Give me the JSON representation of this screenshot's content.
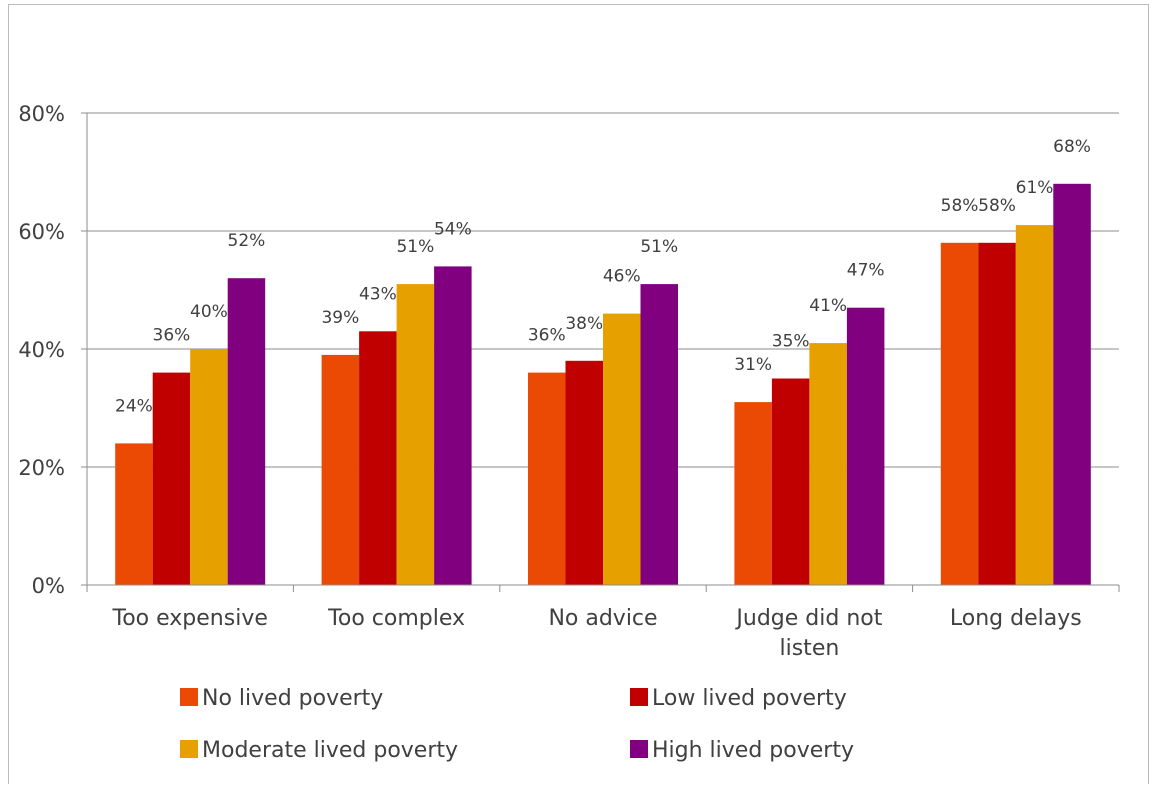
{
  "chart_data": {
    "type": "bar",
    "categories": [
      "Too expensive",
      "Too complex",
      "No advice",
      "Judge did not listen",
      "Long delays"
    ],
    "category_lines": [
      [
        "Too expensive"
      ],
      [
        "Too complex"
      ],
      [
        "No advice"
      ],
      [
        "Judge did not",
        "listen"
      ],
      [
        "Long delays"
      ]
    ],
    "series": [
      {
        "name": "No lived poverty",
        "color": "#ea4a04",
        "values": [
          24,
          39,
          36,
          31,
          58
        ],
        "labels": [
          "24%",
          "39%",
          "36%",
          "31%",
          "58%"
        ]
      },
      {
        "name": "Low lived poverty",
        "color": "#c00000",
        "values": [
          36,
          43,
          38,
          35,
          58
        ],
        "labels": [
          "36%",
          "43%",
          "38%",
          "35%",
          "58%"
        ]
      },
      {
        "name": "Moderate lived poverty",
        "color": "#e6a000",
        "values": [
          40,
          51,
          46,
          41,
          61
        ],
        "labels": [
          "40%",
          "51%",
          "46%",
          "41%",
          "61%"
        ]
      },
      {
        "name": "High lived poverty",
        "color": "#800080",
        "values": [
          52,
          54,
          51,
          47,
          68
        ],
        "labels": [
          "52%",
          "54%",
          "51%",
          "47%",
          "68%"
        ]
      }
    ],
    "ylim": [
      0,
      80
    ],
    "yticks": [
      0,
      20,
      40,
      60,
      80
    ],
    "ytick_labels": [
      "0%",
      "20%",
      "40%",
      "60%",
      "80%"
    ],
    "grid": true,
    "legend_position": "bottom",
    "title": "",
    "xlabel": "",
    "ylabel": ""
  }
}
